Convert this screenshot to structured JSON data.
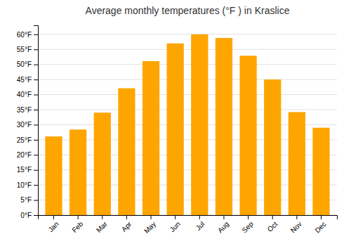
{
  "chart_data": {
    "type": "bar",
    "title": "Average monthly temperatures (°F ) in Kraslice",
    "categories": [
      "Jan",
      "Feb",
      "Mar",
      "Apr",
      "May",
      "Jun",
      "Jul",
      "Aug",
      "Sep",
      "Oct",
      "Nov",
      "Dec"
    ],
    "values": [
      26.1,
      28.4,
      34.0,
      42.1,
      51.1,
      57.0,
      60.0,
      58.8,
      52.9,
      45.0,
      34.2,
      29.0
    ],
    "color": "#FFA500",
    "ylim": [
      0,
      63
    ],
    "yticks": [
      {
        "value": 0,
        "label": "0°F"
      },
      {
        "value": 5,
        "label": "5°F"
      },
      {
        "value": 10,
        "label": "10°F"
      },
      {
        "value": 15,
        "label": "15°F"
      },
      {
        "value": 20,
        "label": "20°F"
      },
      {
        "value": 25,
        "label": "25°F"
      },
      {
        "value": 30,
        "label": "30°F"
      },
      {
        "value": 35,
        "label": "35°F"
      },
      {
        "value": 40,
        "label": "40°F"
      },
      {
        "value": 45,
        "label": "45°F"
      },
      {
        "value": 50,
        "label": "50°F"
      },
      {
        "value": 55,
        "label": "55°F"
      },
      {
        "value": 60,
        "label": "60°F"
      }
    ],
    "grid": true
  }
}
